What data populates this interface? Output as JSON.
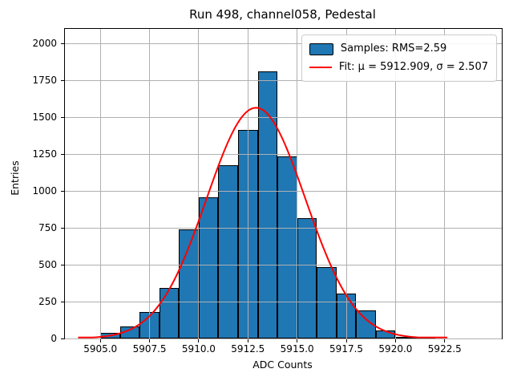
{
  "title": "Run 498, channel058, Pedestal",
  "xlabel": "ADC Counts",
  "ylabel": "Entries",
  "legend": {
    "samples_label": "Samples: RMS=2.59",
    "fit_label": "Fit: μ = 5912.909, σ = 2.507"
  },
  "colors": {
    "bar_fill": "#1f77b4",
    "bar_edge": "#000000",
    "fit_line": "#ff0000",
    "grid": "#b0b0b0"
  },
  "chart_data": {
    "type": "bar",
    "subtype": "histogram",
    "title": "Run 498, channel058, Pedestal",
    "xlabel": "ADC Counts",
    "ylabel": "Entries",
    "bin_edges": [
      5905,
      5906,
      5907,
      5908,
      5909,
      5910,
      5911,
      5912,
      5913,
      5914,
      5915,
      5916,
      5917,
      5918,
      5919,
      5920,
      5921,
      5922
    ],
    "counts": [
      40,
      80,
      180,
      345,
      740,
      960,
      1175,
      1415,
      1810,
      1235,
      815,
      485,
      305,
      190,
      55,
      12,
      4
    ],
    "series_name": "Samples: RMS=2.59",
    "rms": 2.59,
    "fit": {
      "type": "gaussian",
      "name": "Fit: μ = 5912.909, σ = 2.507",
      "mu": 5912.909,
      "sigma": 2.507,
      "peak": 1565,
      "x_range": [
        5903.9,
        5922.7
      ]
    },
    "xlim": [
      5903.2,
      5925.4
    ],
    "ylim": [
      0,
      2100
    ],
    "xtick_labels": [
      "5905.0",
      "5907.5",
      "5910.0",
      "5912.5",
      "5915.0",
      "5917.5",
      "5920.0",
      "5922.5"
    ],
    "yticks": [
      0,
      250,
      500,
      750,
      1000,
      1250,
      1500,
      1750,
      2000
    ],
    "grid": true,
    "grid_above_bars": true,
    "legend_position": "upper right"
  }
}
